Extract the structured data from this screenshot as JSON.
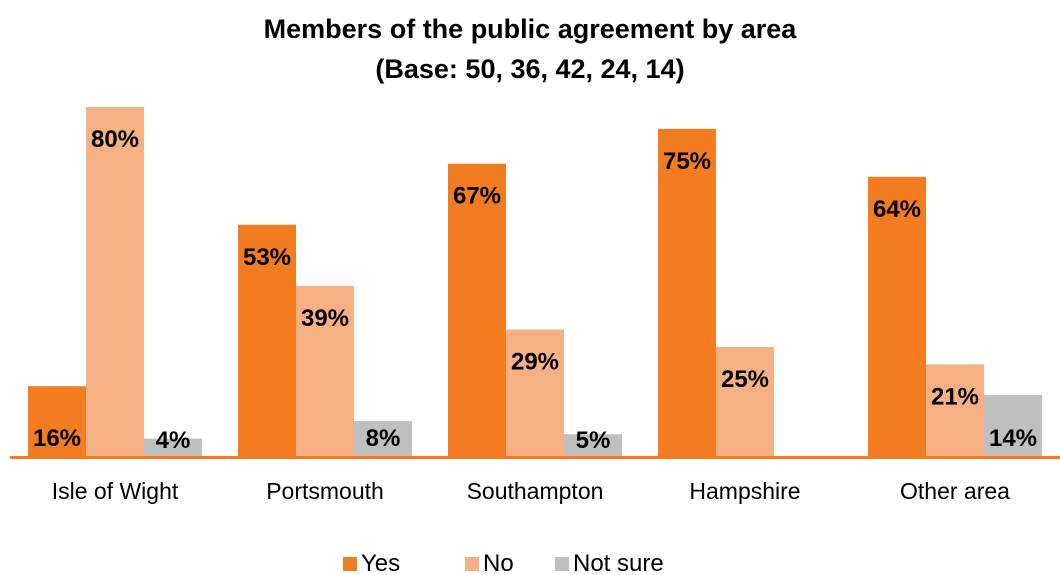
{
  "chart_data": {
    "type": "bar",
    "title": "Members of the public agreement by area",
    "subtitle": "(Base: 50, 36, 42, 24, 14)",
    "categories": [
      "Isle of Wight",
      "Portsmouth",
      "Southampton",
      "Hampshire",
      "Other area"
    ],
    "series": [
      {
        "name": "Yes",
        "color": "#f47c20",
        "values": [
          16,
          53,
          67,
          75,
          64
        ],
        "labels": [
          "16%",
          "53%",
          "67%",
          "75%",
          "64%"
        ]
      },
      {
        "name": "No",
        "color": "#f5b183",
        "values": [
          80,
          39,
          29,
          25,
          21
        ],
        "labels": [
          "80%",
          "39%",
          "29%",
          "25%",
          "21%"
        ]
      },
      {
        "name": "Not sure",
        "color": "#bfbfbf",
        "values": [
          4,
          8,
          5,
          null,
          14
        ],
        "labels": [
          "4%",
          "8%",
          "5%",
          "",
          "14%"
        ]
      }
    ],
    "ylim": [
      0,
      80
    ],
    "grid": false,
    "axis_color": "#f47c20",
    "legend_position": "bottom"
  }
}
